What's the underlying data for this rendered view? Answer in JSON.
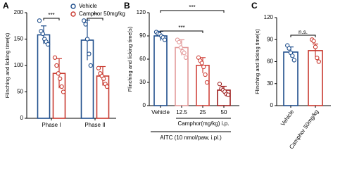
{
  "chart_data": [
    {
      "type": "bar",
      "label": "A",
      "ylabel": "Flinching and licking time(s)",
      "categories": [
        "Phase I",
        "Phase II"
      ],
      "series": [
        {
          "name": "Vehicle",
          "color": "#1f4e8c",
          "values": [
            158,
            148
          ],
          "errors": [
            17,
            38
          ],
          "points": [
            [
              185,
              165,
              160,
              150,
              145,
              140
            ],
            [
              185,
              178,
              150,
              122,
              100
            ]
          ]
        },
        {
          "name": "Camphor 50mg/kg",
          "color": "#c8382e",
          "values": [
            85,
            80
          ],
          "errors": [
            28,
            18
          ],
          "points": [
            [
              115,
              100,
              85,
              75,
              60,
              50
            ],
            [
              95,
              85,
              80,
              75,
              65,
              60
            ]
          ]
        }
      ],
      "ylim": [
        0,
        200
      ],
      "yticks": [
        0,
        50,
        100,
        150,
        200
      ],
      "annotations": [
        "***",
        "**"
      ]
    },
    {
      "type": "bar",
      "label": "B",
      "ylabel": "Flinching and licking time(s)",
      "categories": [
        "Vehicle",
        "12.5",
        "25",
        "50"
      ],
      "values": [
        90,
        75,
        52,
        20
      ],
      "errors": [
        6,
        10,
        10,
        5
      ],
      "colors": [
        "#1f4e8c",
        "#e39a9a",
        "#d0453d",
        "#9e1f1f"
      ],
      "points": [
        [
          95,
          93,
          92,
          90,
          88,
          85
        ],
        [
          85,
          82,
          75,
          70,
          68,
          62
        ],
        [
          62,
          58,
          55,
          50,
          40,
          30
        ],
        [
          28,
          22,
          20,
          18,
          15,
          14
        ]
      ],
      "ylim": [
        0,
        120
      ],
      "yticks": [
        0,
        30,
        60,
        90,
        120
      ],
      "annotations": [
        "***",
        "***"
      ],
      "xlabels": [
        "Camphor(mg/kg) i.p.",
        "AITC (10 nmol/paw, i.pl.)"
      ]
    },
    {
      "type": "bar",
      "label": "C",
      "ylabel": "Flinching and licking time(s)",
      "categories": [
        "Vehicle",
        "Camphor 50mg/kg"
      ],
      "values": [
        73,
        75
      ],
      "errors": [
        7,
        9
      ],
      "colors": [
        "#1f4e8c",
        "#c8382e"
      ],
      "points": [
        [
          82,
          78,
          72,
          68,
          62
        ],
        [
          90,
          88,
          80,
          65,
          60
        ]
      ],
      "ylim": [
        0,
        120
      ],
      "yticks": [
        0,
        30,
        60,
        90,
        120
      ],
      "annotations": [
        "n.s."
      ]
    }
  ]
}
